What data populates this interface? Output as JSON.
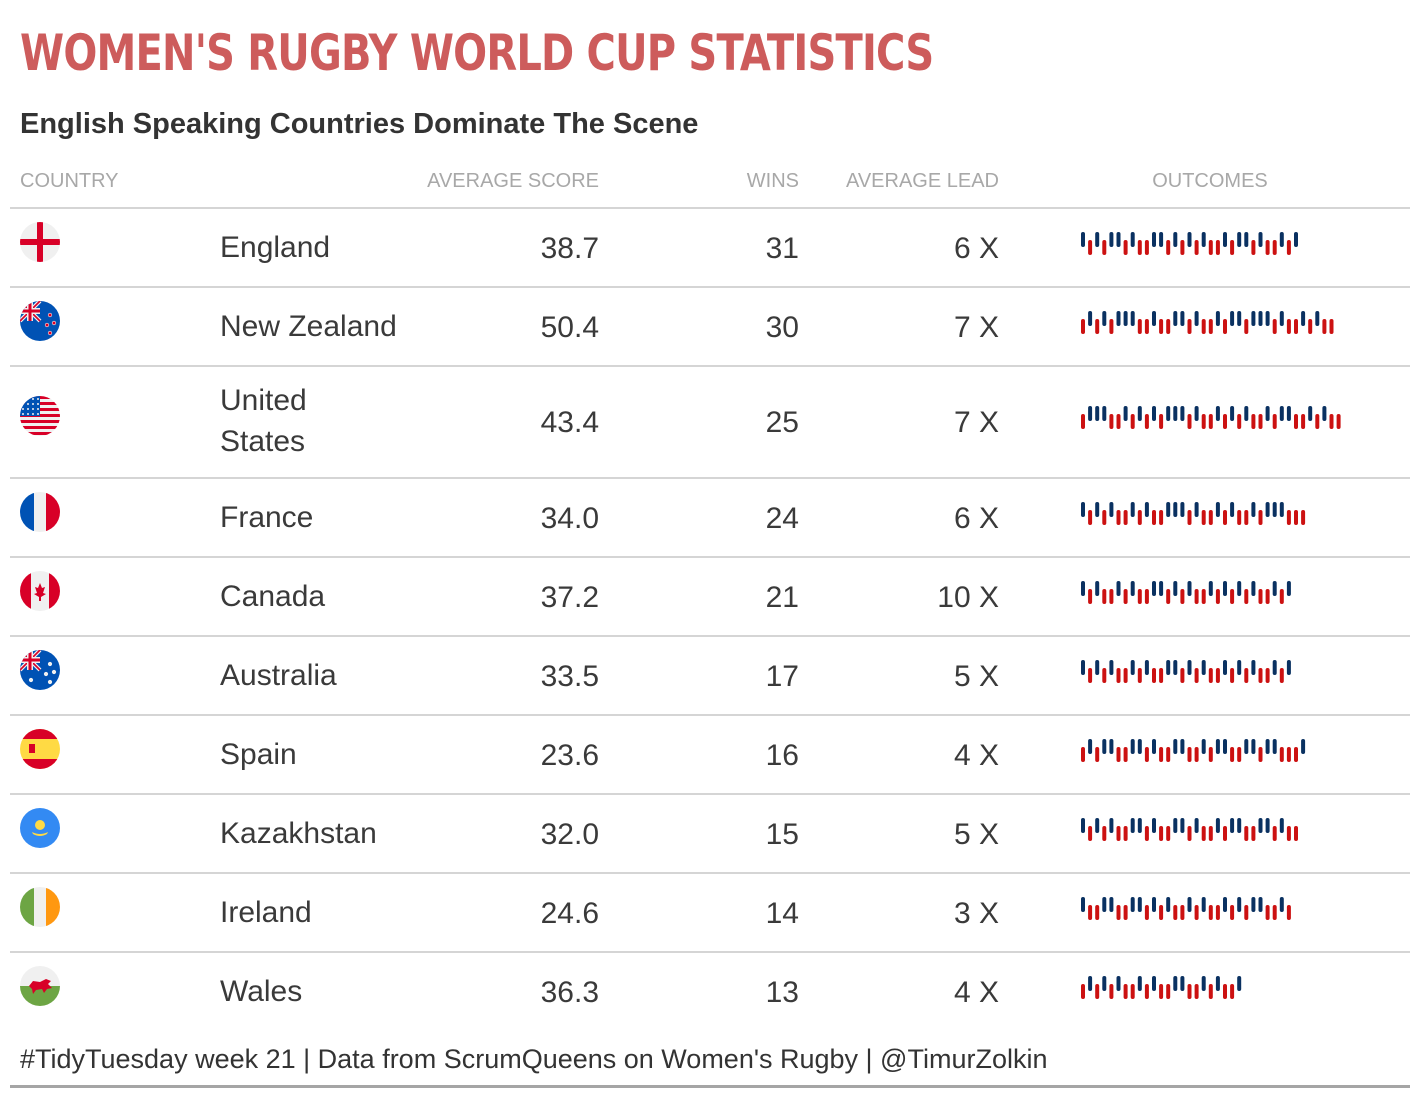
{
  "title": "WOMEN'S RUGBY WORLD CUP STATISTICS",
  "subtitle": "English Speaking Countries Dominate The Scene",
  "caption": "#TidyTuesday week 21 | Data from ScrumQueens on Women's Rugby | @TimurZolkin",
  "columns": {
    "country": "COUNTRY",
    "average_score": "AVERAGE SCORE",
    "wins": "WINS",
    "average_lead": "AVERAGE LEAD",
    "outcomes": "OUTCOMES"
  },
  "colors": {
    "title": "#cd5c5c",
    "win_bar": "#0a3161",
    "loss_bar": "#cc1111",
    "header_text": "#a8a8a8",
    "body_text": "#3a3a3a"
  },
  "chart_data": {
    "type": "table",
    "sparkline_type": "win-loss",
    "sparkline_legend": {
      "W": "win (navy, upper)",
      "L": "loss (red, lower)"
    },
    "rows": [
      {
        "flag": "england-flag-icon",
        "country": "England",
        "average_score": "38.7",
        "wins": "31",
        "average_lead": "6 X",
        "outcomes": "WLWLWWLWLLWWLWLWLWLLWLWWLWLLWLW"
      },
      {
        "flag": "new-zealand-flag-icon",
        "country": "New Zealand",
        "average_score": "50.4",
        "wins": "30",
        "average_lead": "7 X",
        "outcomes": "LWLWLWWWLLWLLWWLWLLWLWWLWWWLWLLWLWLL"
      },
      {
        "flag": "united-states-flag-icon",
        "country": "United States",
        "average_score": "43.4",
        "wins": "25",
        "average_lead": "7 X",
        "outcomes": "LWWWLLWLWLWLWWWLWLLWLWLWLLWLWWLLWLWLL"
      },
      {
        "flag": "france-flag-icon",
        "country": "France",
        "average_score": "34.0",
        "wins": "24",
        "average_lead": "6 X",
        "outcomes": "WLWLWLLWLWLLWWWLWLLWLWLLWLWWWLLL"
      },
      {
        "flag": "canada-flag-icon",
        "country": "Canada",
        "average_score": "37.2",
        "wins": "21",
        "average_lead": "10 X",
        "outcomes": "WLWLLWLWLLWWLWLWLLWLWLWLWLLWLW"
      },
      {
        "flag": "australia-flag-icon",
        "country": "Australia",
        "average_score": "33.5",
        "wins": "17",
        "average_lead": "5 X",
        "outcomes": "WLWLWLLWLWLLWWLWLWLLWLWLWLLWLW"
      },
      {
        "flag": "spain-flag-icon",
        "country": "Spain",
        "average_score": "23.6",
        "wins": "16",
        "average_lead": "4 X",
        "outcomes": "LWLWWLLWWLWLLWWLLWLWWLLWWLWWLLLW"
      },
      {
        "flag": "kazakhstan-flag-icon",
        "country": "Kazakhstan",
        "average_score": "32.0",
        "wins": "15",
        "average_lead": "5 X",
        "outcomes": "WLWLWLLWWLWLLWWLWLLWLWWLLWWLWLL"
      },
      {
        "flag": "ireland-flag-icon",
        "country": "Ireland",
        "average_score": "24.6",
        "wins": "14",
        "average_lead": "3 X",
        "outcomes": "WLLWWLLWWLWLWLLWLWLLWLWLWWLLWL"
      },
      {
        "flag": "wales-flag-icon",
        "country": "Wales",
        "average_score": "36.3",
        "wins": "13",
        "average_lead": "4 X",
        "outcomes": "LWLWLWLLWLWLLWWLLWLWLLW"
      }
    ]
  }
}
